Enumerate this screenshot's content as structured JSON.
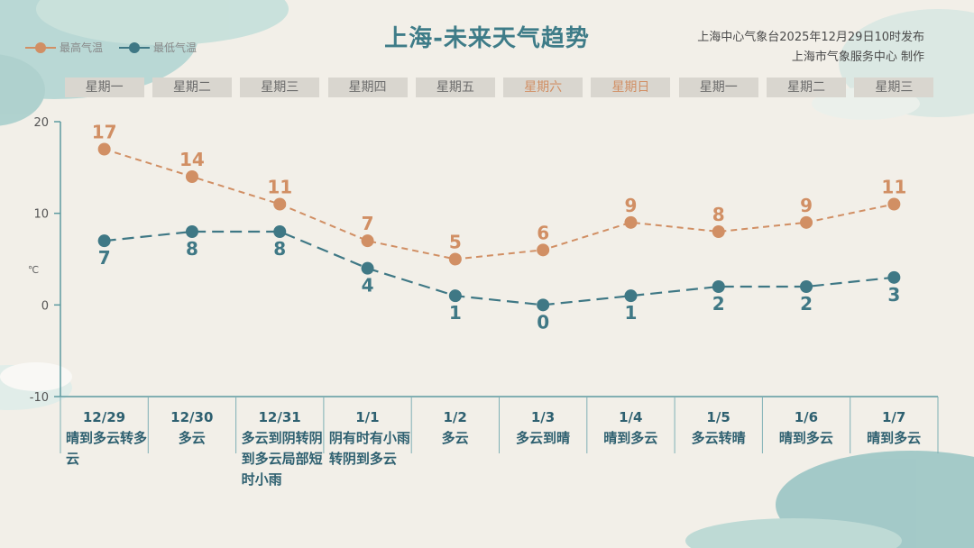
{
  "header": {
    "title": "上海-未来天气趋势",
    "publisher_line1": "上海中心气象台2025年12月29日10时发布",
    "publisher_line2": "上海市气象服务中心 制作"
  },
  "legend": {
    "high_label": "最高气温",
    "low_label": "最低气温"
  },
  "weekdays": [
    "星期一",
    "星期二",
    "星期三",
    "星期四",
    "星期五",
    "星期六",
    "星期日",
    "星期一",
    "星期二",
    "星期三"
  ],
  "days": [
    {
      "date": "12/29",
      "desc": "晴到多云转多云"
    },
    {
      "date": "12/30",
      "desc": "多云"
    },
    {
      "date": "12/31",
      "desc": "多云到阴转阴到多云局部短时小雨"
    },
    {
      "date": "1/1",
      "desc": "阴有时有小雨转阴到多云"
    },
    {
      "date": "1/2",
      "desc": "多云"
    },
    {
      "date": "1/3",
      "desc": "多云到晴"
    },
    {
      "date": "1/4",
      "desc": "晴到多云"
    },
    {
      "date": "1/5",
      "desc": "多云转晴"
    },
    {
      "date": "1/6",
      "desc": "晴到多云"
    },
    {
      "date": "1/7",
      "desc": "晴到多云"
    }
  ],
  "chart_data": {
    "type": "line",
    "categories": [
      "12/29",
      "12/30",
      "12/31",
      "1/1",
      "1/2",
      "1/3",
      "1/4",
      "1/5",
      "1/6",
      "1/7"
    ],
    "series": [
      {
        "name": "最高气温",
        "values": [
          17,
          14,
          11,
          7,
          5,
          6,
          9,
          8,
          9,
          11
        ],
        "color": "#d18f64"
      },
      {
        "name": "最低气温",
        "values": [
          7,
          8,
          8,
          4,
          1,
          0,
          1,
          2,
          2,
          3
        ],
        "color": "#3f7885"
      }
    ],
    "ylabel": "℃",
    "ylim": [
      -10,
      20
    ],
    "yticks": [
      -10,
      0,
      10,
      20
    ],
    "line_style": "dashed",
    "grid": false
  }
}
